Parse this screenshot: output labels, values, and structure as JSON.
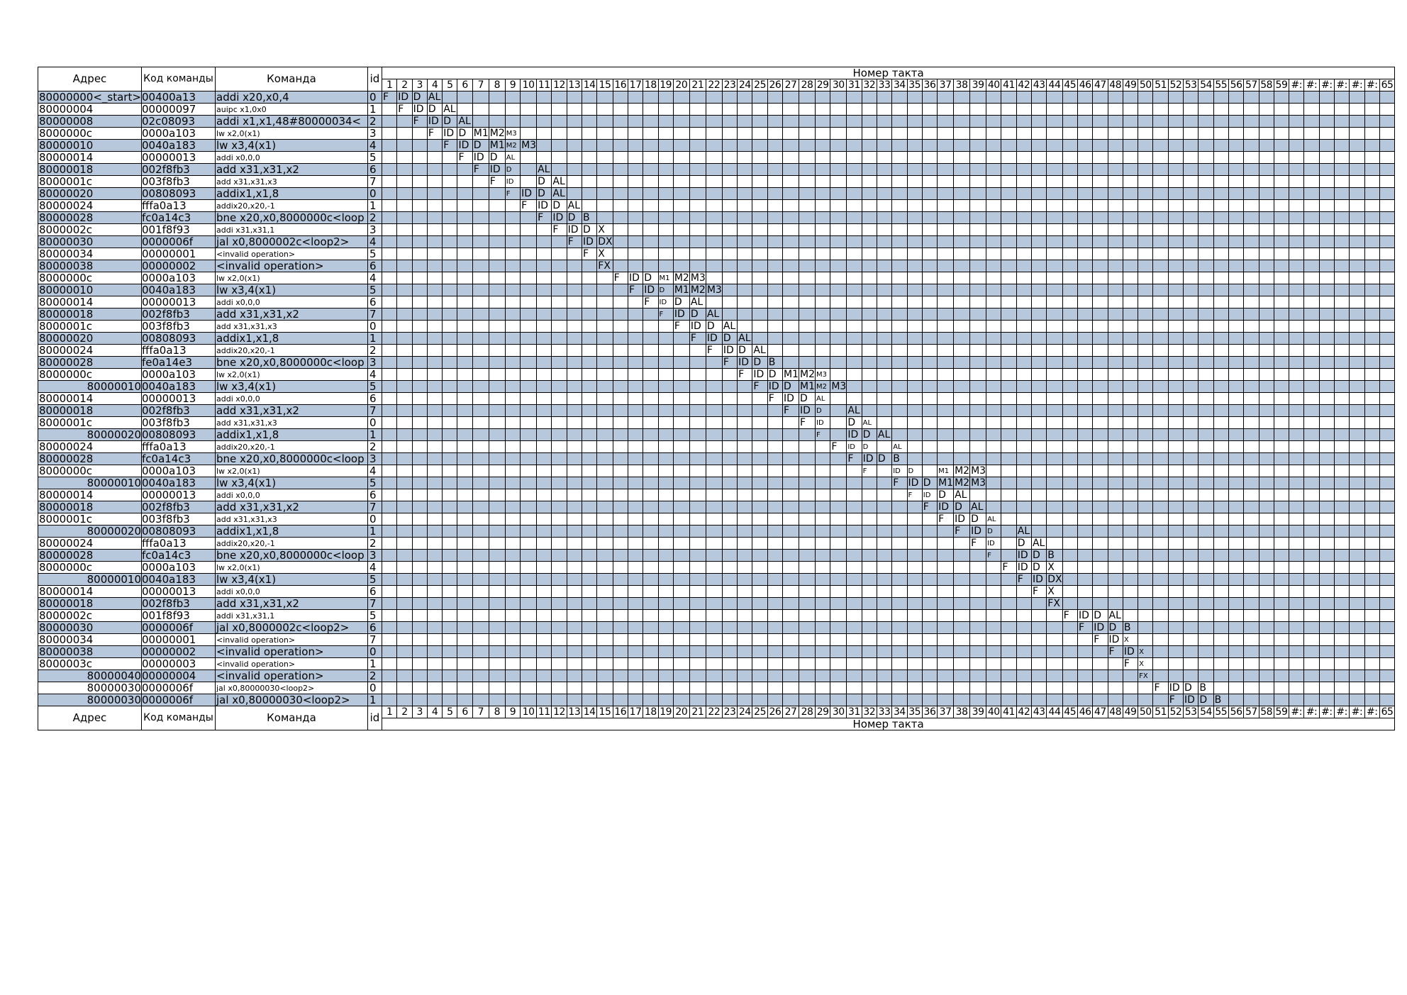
{
  "headers": {
    "address": "Адрес",
    "code": "Код команды",
    "command": "Команда",
    "id": "id",
    "clock": "Номер такта"
  },
  "ticks": [
    "1",
    "2",
    "3",
    "4",
    "5",
    "6",
    "7",
    "8",
    "9",
    "10",
    "11",
    "12",
    "13",
    "14",
    "15",
    "16",
    "17",
    "18",
    "19",
    "20",
    "21",
    "22",
    "23",
    "24",
    "25",
    "26",
    "27",
    "28",
    "29",
    "30",
    "31",
    "32",
    "33",
    "34",
    "35",
    "36",
    "37",
    "38",
    "39",
    "40",
    "41",
    "42",
    "43",
    "44",
    "45",
    "46",
    "47",
    "48",
    "49",
    "50",
    "51",
    "52",
    "53",
    "54",
    "55",
    "56",
    "57",
    "58",
    "59",
    "#:",
    "#:",
    "#:",
    "#:",
    "#:",
    "#:",
    "65"
  ],
  "rows": [
    {
      "addr": "80000000<_start>",
      "code": "00400a13",
      "cmd": "addi x20,x0,4",
      "id": "0",
      "cmd_small": false,
      "addr_right": false,
      "start": 1,
      "cells": [
        "F",
        "ID",
        "D",
        "AL"
      ],
      "small": []
    },
    {
      "addr": "80000004",
      "code": "00000097",
      "cmd": "auipc x1,0x0",
      "id": "1",
      "cmd_small": true,
      "addr_right": false,
      "start": 2,
      "cells": [
        "F",
        "ID",
        "D",
        "AL"
      ],
      "small": []
    },
    {
      "addr": "80000008",
      "code": "02c08093",
      "cmd": "addi x1,x1,48#80000034<",
      "id": "2",
      "cmd_small": false,
      "addr_right": false,
      "start": 3,
      "cells": [
        "F",
        "ID",
        "D",
        "AL"
      ],
      "small": []
    },
    {
      "addr": "8000000c",
      "code": "0000a103",
      "cmd": "lw x2,0(x1)",
      "id": "3",
      "cmd_small": true,
      "addr_right": false,
      "start": 4,
      "cells": [
        "F",
        "ID",
        "D",
        "M1",
        "M2",
        "M3"
      ],
      "small": [
        5
      ]
    },
    {
      "addr": "80000010",
      "code": "0040a183",
      "cmd": "lw x3,4(x1)",
      "id": "4",
      "cmd_small": false,
      "addr_right": false,
      "start": 5,
      "cells": [
        "F",
        "ID",
        "D",
        "M1",
        "M2",
        "M3"
      ],
      "small": [
        4
      ]
    },
    {
      "addr": "80000014",
      "code": "00000013",
      "cmd": "addi x0,0,0",
      "id": "5",
      "cmd_small": true,
      "addr_right": false,
      "start": 6,
      "cells": [
        "F",
        "ID",
        "D",
        "AL"
      ],
      "small": [
        3
      ]
    },
    {
      "addr": "80000018",
      "code": "002f8fb3",
      "cmd": "add x31,x31,x2",
      "id": "6",
      "cmd_small": false,
      "addr_right": false,
      "start": 7,
      "cells": [
        "F",
        "ID",
        "D",
        "",
        "AL"
      ],
      "small": [
        2
      ]
    },
    {
      "addr": "8000001c",
      "code": "003f8fb3",
      "cmd": "add x31,x31,x3",
      "id": "7",
      "cmd_small": true,
      "addr_right": false,
      "start": 8,
      "cells": [
        "F",
        "ID",
        "",
        "D",
        "AL"
      ],
      "small": [
        1
      ]
    },
    {
      "addr": "80000020",
      "code": "00808093",
      "cmd": "addix1,x1,8",
      "id": "0",
      "cmd_small": false,
      "addr_right": false,
      "start": 9,
      "cells": [
        "F",
        "ID",
        "D",
        "AL"
      ],
      "small": [
        0
      ]
    },
    {
      "addr": "80000024",
      "code": "fffa0a13",
      "cmd": "addix20,x20,-1",
      "id": "1",
      "cmd_small": true,
      "addr_right": false,
      "start": 10,
      "cells": [
        "F",
        "ID",
        "D",
        "AL"
      ],
      "small": []
    },
    {
      "addr": "80000028",
      "code": "fc0a14c3",
      "cmd": "bne x20,x0,8000000c<loop",
      "id": "2",
      "cmd_small": false,
      "addr_right": false,
      "start": 11,
      "cells": [
        "F",
        "ID",
        "D",
        "B"
      ],
      "small": []
    },
    {
      "addr": "8000002c",
      "code": "001f8f93",
      "cmd": "addi x31,x31,1",
      "id": "3",
      "cmd_small": true,
      "addr_right": false,
      "start": 12,
      "cells": [
        "F",
        "ID",
        "D",
        "X"
      ],
      "small": []
    },
    {
      "addr": "80000030",
      "code": "0000006f",
      "cmd": "jal x0,8000002c<loop2>",
      "id": "4",
      "cmd_small": false,
      "addr_right": false,
      "start": 13,
      "cells": [
        "F",
        "ID",
        "DX"
      ],
      "small": []
    },
    {
      "addr": "80000034",
      "code": "00000001",
      "cmd": "<invalid operation>",
      "id": "5",
      "cmd_small": true,
      "addr_right": false,
      "start": 14,
      "cells": [
        "F",
        "X"
      ],
      "small": []
    },
    {
      "addr": "80000038",
      "code": "00000002",
      "cmd": "<invalid operation>",
      "id": "6",
      "cmd_small": false,
      "addr_right": false,
      "start": 15,
      "cells": [
        "FX"
      ],
      "small": []
    },
    {
      "addr": "8000000c",
      "code": "0000a103",
      "cmd": "lw x2,0(x1)",
      "id": "4",
      "cmd_small": true,
      "addr_right": false,
      "start": 16,
      "cells": [
        "F",
        "ID",
        "D",
        "M1",
        "M2",
        "M3"
      ],
      "small": [
        3
      ]
    },
    {
      "addr": "80000010",
      "code": "0040a183",
      "cmd": "lw x3,4(x1)",
      "id": "5",
      "cmd_small": false,
      "addr_right": false,
      "start": 17,
      "cells": [
        "F",
        "ID",
        "D",
        "M1",
        "M2",
        "M3"
      ],
      "small": [
        2
      ]
    },
    {
      "addr": "80000014",
      "code": "00000013",
      "cmd": "addi x0,0,0",
      "id": "6",
      "cmd_small": true,
      "addr_right": false,
      "start": 18,
      "cells": [
        "F",
        "ID",
        "D",
        "AL"
      ],
      "small": [
        1
      ]
    },
    {
      "addr": "80000018",
      "code": "002f8fb3",
      "cmd": "add x31,x31,x2",
      "id": "7",
      "cmd_small": false,
      "addr_right": false,
      "start": 19,
      "cells": [
        "F",
        "ID",
        "D",
        "AL"
      ],
      "small": [
        0
      ]
    },
    {
      "addr": "8000001c",
      "code": "003f8fb3",
      "cmd": "add x31,x31,x3",
      "id": "0",
      "cmd_small": true,
      "addr_right": false,
      "start": 20,
      "cells": [
        "F",
        "ID",
        "D",
        "AL"
      ],
      "small": []
    },
    {
      "addr": "80000020",
      "code": "00808093",
      "cmd": "addix1,x1,8",
      "id": "1",
      "cmd_small": false,
      "addr_right": false,
      "start": 21,
      "cells": [
        "F",
        "ID",
        "D",
        "AL"
      ],
      "small": []
    },
    {
      "addr": "80000024",
      "code": "fffa0a13",
      "cmd": "addix20,x20,-1",
      "id": "2",
      "cmd_small": true,
      "addr_right": false,
      "start": 22,
      "cells": [
        "F",
        "ID",
        "D",
        "AL"
      ],
      "small": []
    },
    {
      "addr": "80000028",
      "code": "fe0a14e3",
      "cmd": "bne x20,x0,8000000c<loop",
      "id": "3",
      "cmd_small": false,
      "addr_right": false,
      "start": 23,
      "cells": [
        "F",
        "ID",
        "D",
        "B"
      ],
      "small": []
    },
    {
      "addr": "8000000c",
      "code": "0000a103",
      "cmd": "lw x2,0(x1)",
      "id": "4",
      "cmd_small": true,
      "addr_right": false,
      "start": 24,
      "cells": [
        "F",
        "ID",
        "D",
        "M1",
        "M2",
        "M3"
      ],
      "small": [
        5
      ]
    },
    {
      "addr": "80000010",
      "code": "0040a183",
      "cmd": "lw x3,4(x1)",
      "id": "5",
      "cmd_small": false,
      "addr_right": true,
      "start": 25,
      "cells": [
        "F",
        "ID",
        "D",
        "M1",
        "M2",
        "M3"
      ],
      "small": [
        4
      ]
    },
    {
      "addr": "80000014",
      "code": "00000013",
      "cmd": "addi x0,0,0",
      "id": "6",
      "cmd_small": true,
      "addr_right": false,
      "start": 26,
      "cells": [
        "F",
        "ID",
        "D",
        "AL"
      ],
      "small": [
        3
      ]
    },
    {
      "addr": "80000018",
      "code": "002f8fb3",
      "cmd": "add x31,x31,x2",
      "id": "7",
      "cmd_small": false,
      "addr_right": false,
      "start": 27,
      "cells": [
        "F",
        "ID",
        "D",
        "",
        "AL"
      ],
      "small": [
        2
      ]
    },
    {
      "addr": "8000001c",
      "code": "003f8fb3",
      "cmd": "add x31,x31,x3",
      "id": "0",
      "cmd_small": true,
      "addr_right": false,
      "start": 28,
      "cells": [
        "F",
        "ID",
        "",
        "D",
        "AL"
      ],
      "small": [
        1,
        4
      ]
    },
    {
      "addr": "80000020",
      "code": "00808093",
      "cmd": "addix1,x1,8",
      "id": "1",
      "cmd_small": false,
      "addr_right": true,
      "start": 29,
      "cells": [
        "F",
        "",
        "ID",
        "D",
        "AL"
      ],
      "small": [
        0
      ]
    },
    {
      "addr": "80000024",
      "code": "fffa0a13",
      "cmd": "addix20,x20,-1",
      "id": "2",
      "cmd_small": true,
      "addr_right": false,
      "start": 30,
      "cells": [
        "F",
        "ID",
        "D",
        "",
        "AL"
      ],
      "small": [
        1,
        2,
        4
      ]
    },
    {
      "addr": "80000028",
      "code": "fc0a14c3",
      "cmd": "bne x20,x0,8000000c<loop",
      "id": "3",
      "cmd_small": false,
      "addr_right": false,
      "start": 31,
      "cells": [
        "F",
        "ID",
        "D",
        "B"
      ],
      "small": []
    },
    {
      "addr": "8000000c",
      "code": "0000a103",
      "cmd": "lw x2,0(x1)",
      "id": "4",
      "cmd_small": true,
      "addr_right": false,
      "start": 32,
      "cells": [
        "F",
        "",
        "ID",
        "D",
        "",
        "M1",
        "M2",
        "M3"
      ],
      "small": [
        0,
        2,
        3,
        5
      ]
    },
    {
      "addr": "80000010",
      "code": "0040a183",
      "cmd": "lw x3,4(x1)",
      "id": "5",
      "cmd_small": false,
      "addr_right": true,
      "start": 34,
      "cells": [
        "F",
        "ID",
        "D",
        "M1",
        "M2",
        "M3"
      ],
      "small": []
    },
    {
      "addr": "80000014",
      "code": "00000013",
      "cmd": "addi x0,0,0",
      "id": "6",
      "cmd_small": true,
      "addr_right": false,
      "start": 35,
      "cells": [
        "F",
        "ID",
        "D",
        "AL"
      ],
      "small": [
        0,
        1
      ]
    },
    {
      "addr": "80000018",
      "code": "002f8fb3",
      "cmd": "add x31,x31,x2",
      "id": "7",
      "cmd_small": false,
      "addr_right": false,
      "start": 36,
      "cells": [
        "F",
        "ID",
        "D",
        "AL"
      ],
      "small": []
    },
    {
      "addr": "8000001c",
      "code": "003f8fb3",
      "cmd": "add x31,x31,x3",
      "id": "0",
      "cmd_small": true,
      "addr_right": false,
      "start": 37,
      "cells": [
        "F",
        "ID",
        "D",
        "AL"
      ],
      "small": [
        3
      ]
    },
    {
      "addr": "80000020",
      "code": "00808093",
      "cmd": "addix1,x1,8",
      "id": "1",
      "cmd_small": false,
      "addr_right": true,
      "start": 38,
      "cells": [
        "F",
        "ID",
        "D",
        "",
        "AL"
      ],
      "small": [
        2
      ]
    },
    {
      "addr": "80000024",
      "code": "fffa0a13",
      "cmd": "addix20,x20,-1",
      "id": "2",
      "cmd_small": true,
      "addr_right": false,
      "start": 39,
      "cells": [
        "F",
        "ID",
        "",
        "D",
        "AL"
      ],
      "small": [
        1
      ]
    },
    {
      "addr": "80000028",
      "code": "fc0a14c3",
      "cmd": "bne x20,x0,8000000c<loop",
      "id": "3",
      "cmd_small": false,
      "addr_right": false,
      "start": 40,
      "cells": [
        "F",
        "",
        "ID",
        "D",
        "B"
      ],
      "small": [
        0
      ]
    },
    {
      "addr": "8000000c",
      "code": "0000a103",
      "cmd": "lw x2,0(x1)",
      "id": "4",
      "cmd_small": true,
      "addr_right": false,
      "start": 41,
      "cells": [
        "F",
        "ID",
        "D",
        "X"
      ],
      "small": []
    },
    {
      "addr": "80000010",
      "code": "0040a183",
      "cmd": "lw x3,4(x1)",
      "id": "5",
      "cmd_small": false,
      "addr_right": true,
      "start": 42,
      "cells": [
        "F",
        "ID",
        "DX"
      ],
      "small": []
    },
    {
      "addr": "80000014",
      "code": "00000013",
      "cmd": "addi x0,0,0",
      "id": "6",
      "cmd_small": true,
      "addr_right": false,
      "start": 43,
      "cells": [
        "F",
        "X"
      ],
      "small": []
    },
    {
      "addr": "80000018",
      "code": "002f8fb3",
      "cmd": "add x31,x31,x2",
      "id": "7",
      "cmd_small": false,
      "addr_right": false,
      "start": 44,
      "cells": [
        "FX"
      ],
      "small": []
    },
    {
      "addr": "8000002c",
      "code": "001f8f93",
      "cmd": "addi x31,x31,1",
      "id": "5",
      "cmd_small": true,
      "addr_right": false,
      "start": 45,
      "cells": [
        "F",
        "ID",
        "D",
        "AL"
      ],
      "small": []
    },
    {
      "addr": "80000030",
      "code": "0000006f",
      "cmd": "jal x0,8000002c<loop2>",
      "id": "6",
      "cmd_small": false,
      "addr_right": false,
      "start": 46,
      "cells": [
        "F",
        "ID",
        "D",
        "B"
      ],
      "small": []
    },
    {
      "addr": "80000034",
      "code": "00000001",
      "cmd": "<invalid operation>",
      "id": "7",
      "cmd_small": true,
      "addr_right": false,
      "start": 47,
      "cells": [
        "F",
        "ID",
        "X"
      ],
      "small": [
        2
      ]
    },
    {
      "addr": "80000038",
      "code": "00000002",
      "cmd": "<invalid operation>",
      "id": "0",
      "cmd_small": false,
      "addr_right": false,
      "start": 48,
      "cells": [
        "F",
        "ID",
        "X"
      ],
      "small": [
        2
      ]
    },
    {
      "addr": "8000003c",
      "code": "00000003",
      "cmd": "<invalid operation>",
      "id": "1",
      "cmd_small": true,
      "addr_right": false,
      "start": 49,
      "cells": [
        "F",
        "X"
      ],
      "small": [
        1
      ]
    },
    {
      "addr": "80000040",
      "code": "00000004",
      "cmd": "<invalid operation>",
      "id": "2",
      "cmd_small": false,
      "addr_right": true,
      "start": 50,
      "cells": [
        "FX"
      ],
      "small": [
        0
      ]
    },
    {
      "addr": "80000030",
      "code": "0000006f",
      "cmd": "jal x0,80000030<loop2>",
      "id": "0",
      "cmd_small": true,
      "addr_right": true,
      "start": 51,
      "cells": [
        "F",
        "ID",
        "D",
        "B"
      ],
      "small": []
    },
    {
      "addr": "80000030",
      "code": "0000006f",
      "cmd": "jal x0,80000030<loop2>",
      "id": "1",
      "cmd_small": false,
      "addr_right": true,
      "start": 52,
      "cells": [
        "F",
        "ID",
        "D",
        "B"
      ],
      "small": []
    }
  ]
}
